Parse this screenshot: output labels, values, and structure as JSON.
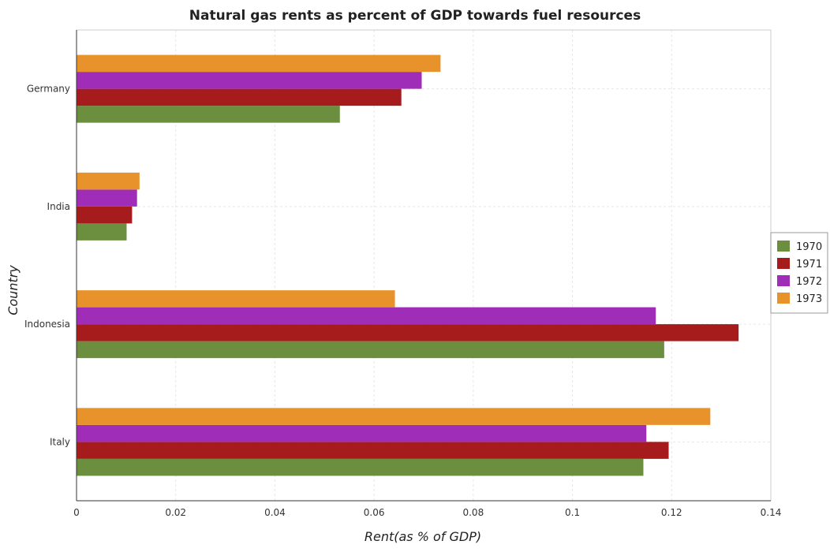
{
  "chart_data": {
    "type": "bar",
    "orientation": "horizontal",
    "title": "Natural gas rents as percent of GDP towards fuel resources",
    "xlabel": "Rent(as % of GDP)",
    "ylabel": "Country",
    "categories": [
      "Germany",
      "India",
      "Indonesia",
      "Italy"
    ],
    "series": [
      {
        "name": "1970",
        "color": "#6b8e3f",
        "values": [
          0.0531,
          0.0101,
          0.1185,
          0.1143
        ]
      },
      {
        "name": "1971",
        "color": "#a61c1c",
        "values": [
          0.0655,
          0.0112,
          0.1335,
          0.1194
        ]
      },
      {
        "name": "1972",
        "color": "#9f2db8",
        "values": [
          0.0696,
          0.0122,
          0.1168,
          0.1149
        ]
      },
      {
        "name": "1973",
        "color": "#e8922b",
        "values": [
          0.0734,
          0.0127,
          0.0642,
          0.1278
        ]
      }
    ],
    "xlim": [
      0,
      0.14
    ],
    "xticks": [
      "0",
      "0.02",
      "0.04",
      "0.06",
      "0.08",
      "0.1",
      "0.12",
      "0.14"
    ],
    "grid": true,
    "legend_position": "right"
  }
}
